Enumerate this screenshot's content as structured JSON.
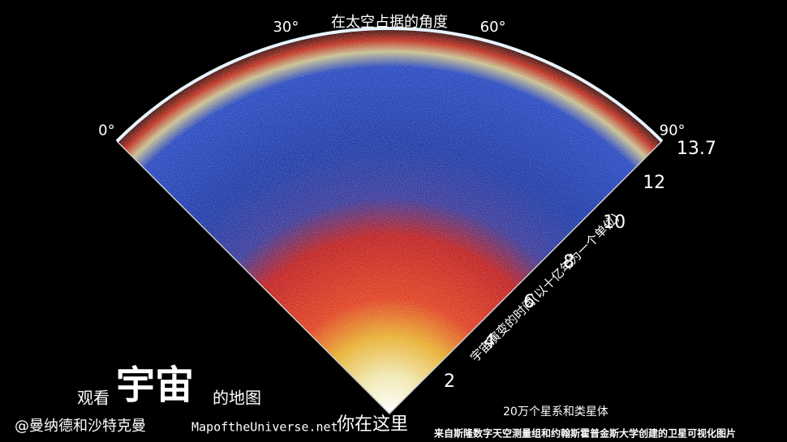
{
  "header": {
    "title": "在太空占据的角度"
  },
  "angle_axis": {
    "labels": [
      "0°",
      "30°",
      "60°",
      "90°"
    ]
  },
  "time_axis": {
    "label": "宇宙演变的时间(以十亿年为一个单位)",
    "ticks": [
      2,
      4,
      6,
      8,
      10,
      12,
      13.7
    ]
  },
  "caption": {
    "prefix": "观看",
    "main": "宇宙",
    "suffix": "的地图"
  },
  "credits": {
    "authors": "@曼纳德和沙特克曼",
    "site": "MapoftheUniverse.net",
    "here": "你在这里",
    "count": "20万个星系和类星体",
    "source": "来自斯隆数字天空测量组和约翰斯霍普金斯大学创建的卫星可视化图片"
  }
}
